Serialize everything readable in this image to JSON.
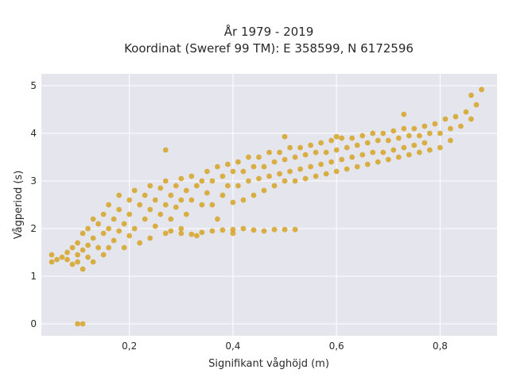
{
  "chart_data": {
    "type": "scatter",
    "title_line1": "År 1979 - 2019",
    "title_line2": "Koordinat (Sweref 99 TM): E 358599, N 6172596",
    "xlabel": "Signifikant våghöjd (m)",
    "ylabel": "Vågperiod (s)",
    "xlim": [
      0.03,
      0.91
    ],
    "ylim": [
      -0.25,
      5.25
    ],
    "x_ticks": [
      0.2,
      0.4,
      0.6,
      0.8
    ],
    "x_tick_labels": [
      "0,2",
      "0,4",
      "0,6",
      "0,8"
    ],
    "y_ticks": [
      0,
      1,
      2,
      3,
      4,
      5
    ],
    "y_tick_labels": [
      "0",
      "1",
      "2",
      "3",
      "4",
      "5"
    ],
    "grid": true,
    "point_color": "#D4A017",
    "plot_background": "#E5E5EE",
    "series": [
      {
        "points": [
          [
            0.05,
            1.3
          ],
          [
            0.05,
            1.45
          ],
          [
            0.06,
            1.35
          ],
          [
            0.07,
            1.4
          ],
          [
            0.08,
            1.5
          ],
          [
            0.08,
            1.35
          ],
          [
            0.09,
            1.6
          ],
          [
            0.09,
            1.25
          ],
          [
            0.1,
            1.7
          ],
          [
            0.1,
            1.45
          ],
          [
            0.1,
            1.3
          ],
          [
            0.11,
            1.55
          ],
          [
            0.11,
            1.15
          ],
          [
            0.11,
            1.9
          ],
          [
            0.12,
            1.65
          ],
          [
            0.12,
            2.0
          ],
          [
            0.12,
            1.4
          ],
          [
            0.13,
            1.8
          ],
          [
            0.13,
            2.2
          ],
          [
            0.13,
            1.3
          ],
          [
            0.14,
            2.1
          ],
          [
            0.14,
            1.6
          ],
          [
            0.15,
            2.3
          ],
          [
            0.15,
            1.9
          ],
          [
            0.15,
            1.45
          ],
          [
            0.16,
            2.5
          ],
          [
            0.16,
            2.0
          ],
          [
            0.16,
            1.6
          ],
          [
            0.17,
            2.2
          ],
          [
            0.17,
            1.75
          ],
          [
            0.18,
            2.4
          ],
          [
            0.18,
            2.7
          ],
          [
            0.18,
            1.95
          ],
          [
            0.19,
            2.1
          ],
          [
            0.19,
            1.6
          ],
          [
            0.2,
            2.6
          ],
          [
            0.2,
            2.3
          ],
          [
            0.2,
            1.85
          ],
          [
            0.21,
            2.8
          ],
          [
            0.21,
            2.0
          ],
          [
            0.22,
            2.5
          ],
          [
            0.22,
            1.7
          ],
          [
            0.23,
            2.7
          ],
          [
            0.23,
            2.2
          ],
          [
            0.24,
            2.9
          ],
          [
            0.24,
            2.4
          ],
          [
            0.24,
            1.8
          ],
          [
            0.25,
            2.6
          ],
          [
            0.25,
            2.05
          ],
          [
            0.26,
            2.85
          ],
          [
            0.26,
            2.3
          ],
          [
            0.27,
            3.0
          ],
          [
            0.27,
            2.5
          ],
          [
            0.27,
            1.9
          ],
          [
            0.28,
            2.7
          ],
          [
            0.28,
            2.2
          ],
          [
            0.29,
            2.9
          ],
          [
            0.29,
            2.45
          ],
          [
            0.3,
            3.05
          ],
          [
            0.3,
            2.6
          ],
          [
            0.3,
            2.0
          ],
          [
            0.31,
            2.8
          ],
          [
            0.31,
            2.3
          ],
          [
            0.32,
            3.1
          ],
          [
            0.32,
            2.6
          ],
          [
            0.33,
            2.9
          ],
          [
            0.33,
            1.85
          ],
          [
            0.34,
            3.0
          ],
          [
            0.34,
            2.5
          ],
          [
            0.35,
            3.2
          ],
          [
            0.35,
            2.75
          ],
          [
            0.36,
            3.0
          ],
          [
            0.36,
            2.5
          ],
          [
            0.37,
            3.3
          ],
          [
            0.37,
            2.2
          ],
          [
            0.38,
            3.1
          ],
          [
            0.38,
            2.7
          ],
          [
            0.39,
            3.35
          ],
          [
            0.39,
            2.9
          ],
          [
            0.4,
            3.2
          ],
          [
            0.4,
            2.55
          ],
          [
            0.4,
            1.9
          ],
          [
            0.41,
            3.4
          ],
          [
            0.41,
            2.9
          ],
          [
            0.42,
            3.2
          ],
          [
            0.42,
            2.6
          ],
          [
            0.43,
            3.5
          ],
          [
            0.43,
            3.0
          ],
          [
            0.44,
            3.3
          ],
          [
            0.44,
            2.7
          ],
          [
            0.45,
            3.5
          ],
          [
            0.45,
            3.05
          ],
          [
            0.46,
            3.3
          ],
          [
            0.46,
            2.8
          ],
          [
            0.47,
            3.6
          ],
          [
            0.47,
            3.1
          ],
          [
            0.48,
            3.4
          ],
          [
            0.48,
            2.9
          ],
          [
            0.49,
            3.6
          ],
          [
            0.49,
            3.15
          ],
          [
            0.5,
            3.45
          ],
          [
            0.5,
            3.0
          ],
          [
            0.51,
            3.7
          ],
          [
            0.51,
            3.2
          ],
          [
            0.52,
            3.5
          ],
          [
            0.52,
            3.0
          ],
          [
            0.53,
            3.7
          ],
          [
            0.53,
            3.25
          ],
          [
            0.54,
            3.55
          ],
          [
            0.54,
            3.05
          ],
          [
            0.55,
            3.75
          ],
          [
            0.55,
            3.3
          ],
          [
            0.56,
            3.6
          ],
          [
            0.56,
            3.1
          ],
          [
            0.57,
            3.8
          ],
          [
            0.57,
            3.35
          ],
          [
            0.58,
            3.6
          ],
          [
            0.58,
            3.15
          ],
          [
            0.59,
            3.85
          ],
          [
            0.59,
            3.4
          ],
          [
            0.6,
            3.65
          ],
          [
            0.6,
            3.2
          ],
          [
            0.61,
            3.9
          ],
          [
            0.61,
            3.45
          ],
          [
            0.62,
            3.7
          ],
          [
            0.62,
            3.25
          ],
          [
            0.63,
            3.9
          ],
          [
            0.63,
            3.5
          ],
          [
            0.64,
            3.75
          ],
          [
            0.64,
            3.3
          ],
          [
            0.65,
            3.95
          ],
          [
            0.65,
            3.55
          ],
          [
            0.66,
            3.8
          ],
          [
            0.66,
            3.35
          ],
          [
            0.67,
            4.0
          ],
          [
            0.67,
            3.6
          ],
          [
            0.68,
            3.85
          ],
          [
            0.68,
            3.4
          ],
          [
            0.69,
            4.0
          ],
          [
            0.69,
            3.6
          ],
          [
            0.7,
            3.85
          ],
          [
            0.7,
            3.45
          ],
          [
            0.71,
            4.05
          ],
          [
            0.71,
            3.65
          ],
          [
            0.72,
            3.9
          ],
          [
            0.72,
            3.5
          ],
          [
            0.73,
            4.1
          ],
          [
            0.73,
            3.7
          ],
          [
            0.74,
            3.95
          ],
          [
            0.74,
            3.55
          ],
          [
            0.75,
            4.1
          ],
          [
            0.75,
            3.75
          ],
          [
            0.76,
            3.95
          ],
          [
            0.76,
            3.6
          ],
          [
            0.77,
            4.15
          ],
          [
            0.77,
            3.8
          ],
          [
            0.78,
            4.0
          ],
          [
            0.78,
            3.65
          ],
          [
            0.79,
            4.2
          ],
          [
            0.8,
            4.0
          ],
          [
            0.8,
            3.7
          ],
          [
            0.81,
            4.3
          ],
          [
            0.82,
            4.1
          ],
          [
            0.82,
            3.85
          ],
          [
            0.83,
            4.35
          ],
          [
            0.84,
            4.15
          ],
          [
            0.85,
            4.45
          ],
          [
            0.86,
            4.3
          ],
          [
            0.86,
            4.8
          ],
          [
            0.87,
            4.6
          ],
          [
            0.88,
            4.92
          ],
          [
            0.28,
            1.95
          ],
          [
            0.3,
            1.9
          ],
          [
            0.32,
            1.88
          ],
          [
            0.34,
            1.92
          ],
          [
            0.36,
            1.95
          ],
          [
            0.38,
            1.97
          ],
          [
            0.4,
            1.98
          ],
          [
            0.42,
            2.0
          ],
          [
            0.44,
            1.97
          ],
          [
            0.46,
            1.95
          ],
          [
            0.48,
            1.98
          ],
          [
            0.5,
            1.98
          ],
          [
            0.52,
            1.98
          ],
          [
            0.27,
            3.65
          ],
          [
            0.5,
            3.93
          ],
          [
            0.6,
            3.93
          ],
          [
            0.73,
            4.4
          ],
          [
            0.1,
            0.0
          ],
          [
            0.11,
            0.0
          ]
        ]
      }
    ]
  }
}
